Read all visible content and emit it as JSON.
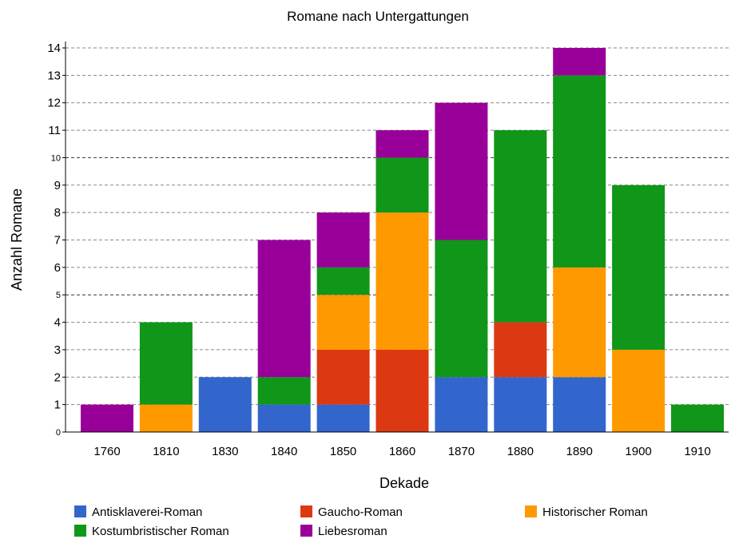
{
  "chart_data": {
    "type": "bar",
    "stacked": true,
    "title": "Romane nach Untergattungen",
    "xlabel": "Dekade",
    "ylabel": "Anzahl Romane",
    "ylim": [
      0,
      14
    ],
    "yticks": [
      0,
      1,
      2,
      3,
      4,
      5,
      6,
      7,
      8,
      9,
      10,
      11,
      12,
      13,
      14
    ],
    "grid": true,
    "legend_position": "bottom",
    "categories": [
      "1760",
      "1810",
      "1830",
      "1840",
      "1850",
      "1860",
      "1870",
      "1880",
      "1890",
      "1900",
      "1910"
    ],
    "series": [
      {
        "name": "Antisklaverei-Roman",
        "color": "#3366cc",
        "values": [
          0,
          0,
          2,
          1,
          1,
          0,
          2,
          2,
          2,
          0,
          0
        ]
      },
      {
        "name": "Gaucho-Roman",
        "color": "#dc3912",
        "values": [
          0,
          0,
          0,
          0,
          2,
          3,
          0,
          2,
          0,
          0,
          0
        ]
      },
      {
        "name": "Historischer Roman",
        "color": "#ff9900",
        "values": [
          0,
          1,
          0,
          0,
          2,
          5,
          0,
          0,
          4,
          3,
          0
        ]
      },
      {
        "name": "Kostumbristischer Roman",
        "color": "#109618",
        "values": [
          0,
          3,
          0,
          1,
          1,
          2,
          5,
          7,
          7,
          6,
          1
        ]
      },
      {
        "name": "Liebesroman",
        "color": "#990099",
        "values": [
          1,
          0,
          0,
          5,
          2,
          1,
          5,
          0,
          1,
          0,
          0
        ]
      }
    ]
  }
}
